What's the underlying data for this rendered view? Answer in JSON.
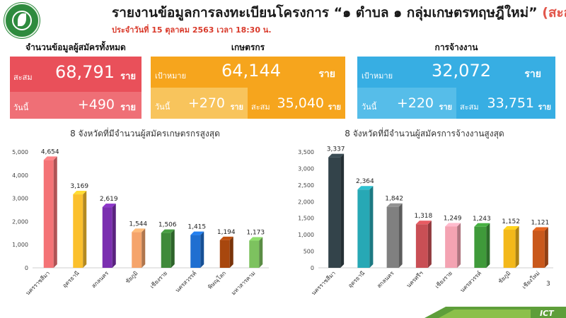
{
  "header": {
    "title_main": "รายงานข้อมูลการลงทะเบียนโครงการ “๑ ตำบล ๑ กลุ่มเกษตรทฤษฎีใหม่”",
    "title_accent": "(สะสม)",
    "subtitle": "ประจำวันที่ 15 ตุลาคม 2563 เวลา 18:30 น."
  },
  "summary_total": {
    "label": "จำนวนข้อมูลผู้สมัครทั้งหมด",
    "cum_label": "สะสม",
    "cum_value": "68,791",
    "today_label": "วันนี้",
    "today_value": "+490",
    "unit": "ราย",
    "color_top": "#e9505a",
    "color_bottom": "#ef6f76"
  },
  "summary_farmer": {
    "label": "เกษตรกร",
    "target_label": "เป้าหมาย",
    "target_value": "64,144",
    "today_label": "วันนี้",
    "today_value": "+270",
    "cum_label": "สะสม",
    "cum_value": "35,040",
    "unit": "ราย",
    "color_top": "#f6a51d",
    "color_bottom_left": "#f8c45c",
    "color_bottom_right": "#f6a51d"
  },
  "summary_employ": {
    "label": "การจ้างงาน",
    "target_label": "เป้าหมาย",
    "target_value": "32,072",
    "today_label": "วันนี้",
    "today_value": "+220",
    "cum_label": "สะสม",
    "cum_value": "33,751",
    "unit": "ราย",
    "color_top": "#37aee3",
    "color_bottom_left": "#56bde9",
    "color_bottom_right": "#37aee3"
  },
  "page_number": "3",
  "footer_logo": "ICT",
  "chart_data": [
    {
      "type": "bar",
      "title": "8 จังหวัดที่มีจำนวนผู้สมัครเกษตรกรสูงสุด",
      "categories": [
        "นครราชสีมา",
        "อุดรธานี",
        "สกลนคร",
        "ชัยภูมิ",
        "เชียงราย",
        "นครสวรรค์",
        "พิษณุโลก",
        "มหาสารคาม"
      ],
      "values": [
        4654,
        3169,
        2619,
        1544,
        1506,
        1415,
        1194,
        1173
      ],
      "value_labels": [
        "4,654",
        "3,169",
        "2,619",
        "1,544",
        "1,506",
        "1,415",
        "1,194",
        "1,173"
      ],
      "colors": [
        "#f47376",
        "#fbc02d",
        "#7b2fb0",
        "#f5a46b",
        "#3f8a3a",
        "#1f6fd1",
        "#a8470e",
        "#7dc25f"
      ],
      "ylim": [
        0,
        5000
      ],
      "yticks": [
        0,
        1000,
        2000,
        3000,
        4000,
        5000
      ],
      "ytick_labels": [
        "0",
        "1,000",
        "2,000",
        "3,000",
        "4,000",
        "5,000"
      ],
      "xlabel": "",
      "ylabel": "",
      "grid": false,
      "legend": false
    },
    {
      "type": "bar",
      "title": "8 จังหวัดที่มีจำนวนผู้สมัครการจ้างงานสูงสุด",
      "categories": [
        "นครราชสีมา",
        "อุดรธานี",
        "สกลนคร",
        "นครศรีฯ",
        "เชียงราย",
        "นครสวรรค์",
        "ชัยภูมิ",
        "เชียงใหม่"
      ],
      "values": [
        3337,
        2364,
        1842,
        1318,
        1249,
        1243,
        1152,
        1121
      ],
      "value_labels": [
        "3,337",
        "2,364",
        "1,842",
        "1,318",
        "1,249",
        "1,243",
        "1,152",
        "1,121"
      ],
      "colors": [
        "#33434a",
        "#27a8b5",
        "#808080",
        "#c94f55",
        "#f4a3b2",
        "#3f9a3a",
        "#f3b81a",
        "#c9581b"
      ],
      "ylim": [
        0,
        3500
      ],
      "yticks": [
        0,
        500,
        1000,
        1500,
        2000,
        2500,
        3000,
        3500
      ],
      "ytick_labels": [
        "0",
        "500",
        "1,000",
        "1,500",
        "2,000",
        "2,500",
        "3,000",
        "3,500"
      ],
      "xlabel": "",
      "ylabel": "",
      "grid": false,
      "legend": false
    }
  ]
}
